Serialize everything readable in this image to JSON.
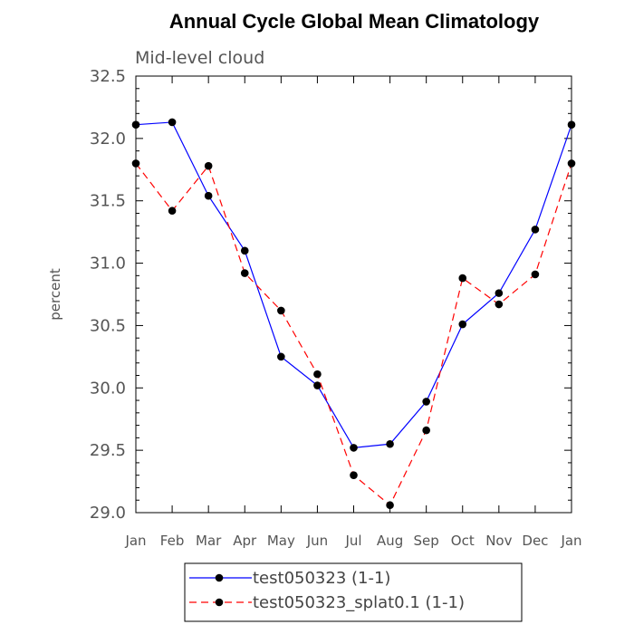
{
  "chart_data": {
    "type": "line",
    "title": "Annual Cycle Global Mean Climatology",
    "subtitle": "Mid-level cloud",
    "xlabel": "",
    "ylabel": "percent",
    "categories": [
      "Jan",
      "Feb",
      "Mar",
      "Apr",
      "May",
      "Jun",
      "Jul",
      "Aug",
      "Sep",
      "Oct",
      "Nov",
      "Dec",
      "Jan"
    ],
    "ylim": [
      29.0,
      32.5
    ],
    "yticks": [
      29.0,
      29.5,
      30.0,
      30.5,
      31.0,
      31.5,
      32.0,
      32.5
    ],
    "ytick_labels": [
      "29.0",
      "29.5",
      "30.0",
      "30.5",
      "31.0",
      "31.5",
      "32.0",
      "32.5"
    ],
    "grid": false,
    "legend_position": "bottom",
    "series": [
      {
        "name": "test050323 (1-1)",
        "color": "#0000ff",
        "dash": "solid",
        "values": [
          32.11,
          32.13,
          31.54,
          31.1,
          30.25,
          30.02,
          29.52,
          29.55,
          29.89,
          30.51,
          30.76,
          31.27,
          32.11
        ]
      },
      {
        "name": "test050323_splat0.1 (1-1)",
        "color": "#ff0000",
        "dash": "dashed",
        "values": [
          31.8,
          31.42,
          31.78,
          30.92,
          30.62,
          30.11,
          29.3,
          29.06,
          29.66,
          30.88,
          30.67,
          30.91,
          31.8
        ]
      }
    ]
  }
}
